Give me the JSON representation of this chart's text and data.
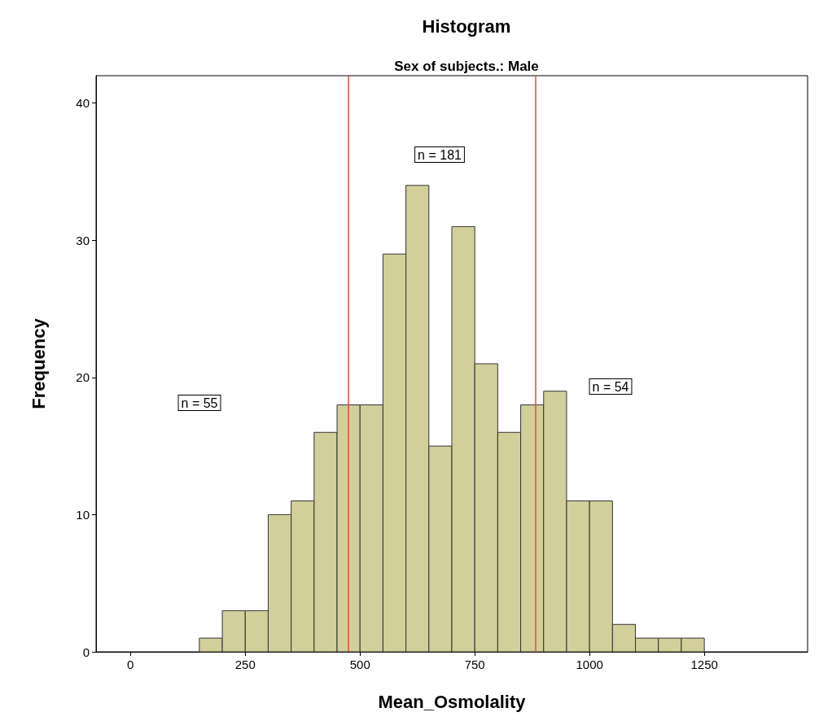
{
  "chart_data": {
    "type": "histogram",
    "title": "Histogram",
    "subtitle": "Sex of subjects.: Male",
    "xlabel": "Mean_Osmolality",
    "ylabel": "Frequency",
    "bins": [
      150,
      200,
      250,
      300,
      350,
      400,
      450,
      500,
      550,
      600,
      650,
      700,
      750,
      800,
      850,
      900,
      950,
      1000,
      1050,
      1100,
      1150,
      1200,
      1250
    ],
    "values": [
      1,
      3,
      3,
      10,
      11,
      16,
      18,
      18,
      29,
      34,
      15,
      31,
      21,
      16,
      18,
      19,
      11,
      11,
      2,
      1,
      1,
      1
    ],
    "color": "#d3cf9b",
    "xlim": [
      -75,
      1475
    ],
    "xticks": [
      0,
      250,
      500,
      750,
      1000,
      1250
    ],
    "ylim": [
      0,
      42
    ],
    "yticks": [
      0,
      10,
      20,
      30,
      40
    ],
    "ref_lines": [
      {
        "axis": "x",
        "value": 474,
        "color": "#e8483f"
      },
      {
        "axis": "x",
        "value": 883,
        "color": "#e8483f"
      }
    ],
    "annotations": [
      "n = 55",
      "n = 181",
      "n = 54"
    ],
    "grid": false
  }
}
